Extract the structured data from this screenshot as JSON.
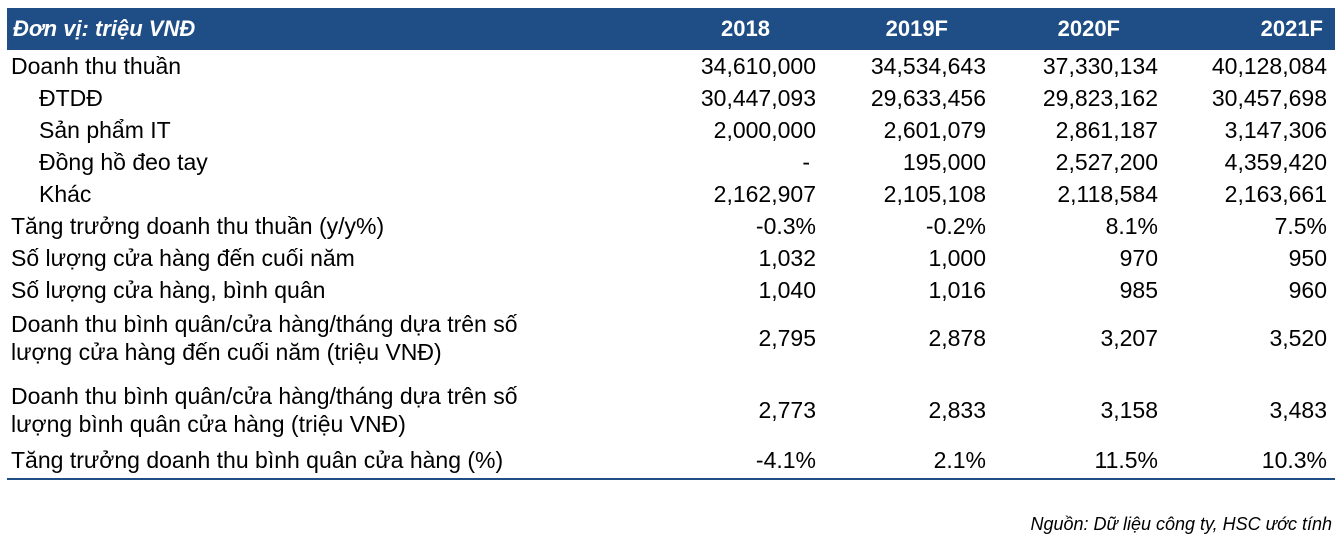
{
  "header": {
    "unit": "Đơn vị: triệu VNĐ",
    "years": [
      "2018",
      "2019F",
      "2020F",
      "2021F"
    ]
  },
  "rows": [
    {
      "label": "Doanh thu thuần",
      "values": [
        "34,610,000",
        "34,534,643",
        "37,330,134",
        "40,128,084"
      ]
    },
    {
      "label": "ĐTDĐ",
      "values": [
        "30,447,093",
        "29,633,456",
        "29,823,162",
        "30,457,698"
      ]
    },
    {
      "label": "Sản phẩm IT",
      "values": [
        "2,000,000",
        "2,601,079",
        "2,861,187",
        "3,147,306"
      ]
    },
    {
      "label": "Đồng hồ đeo tay",
      "values": [
        "-",
        "195,000",
        "2,527,200",
        "4,359,420"
      ]
    },
    {
      "label": "Khác",
      "values": [
        "2,162,907",
        "2,105,108",
        "2,118,584",
        "2,163,661"
      ]
    },
    {
      "label": "Tăng trưởng doanh thu thuần (y/y%)",
      "values": [
        "-0.3%",
        "-0.2%",
        "8.1%",
        "7.5%"
      ]
    },
    {
      "label": "Số lượng cửa hàng đến cuối năm",
      "values": [
        "1,032",
        "1,000",
        "970",
        "950"
      ]
    },
    {
      "label": "Số lượng cửa hàng, bình quân",
      "values": [
        "1,040",
        "1,016",
        "985",
        "960"
      ]
    },
    {
      "label_line1": "Doanh thu bình quân/cửa hàng/tháng dựa trên số",
      "label_line2": "lượng cửa hàng đến cuối năm (triệu VNĐ)",
      "values": [
        "2,795",
        "2,878",
        "3,207",
        "3,520"
      ]
    },
    {
      "label_line1": "Doanh thu bình quân/cửa hàng/tháng dựa trên số",
      "label_line2": "lượng bình quân cửa hàng  (triệu VNĐ)",
      "values": [
        "2,773",
        "2,833",
        "3,158",
        "3,483"
      ]
    },
    {
      "label": "Tăng trưởng doanh thu bình quân cửa hàng (%)",
      "values": [
        "-4.1%",
        "2.1%",
        "11.5%",
        "10.3%"
      ]
    }
  ],
  "source": "Nguồn: Dữ liệu công ty, HSC ước tính",
  "colors": {
    "header_bg": "#1f4e86",
    "header_text": "#ffffff"
  }
}
